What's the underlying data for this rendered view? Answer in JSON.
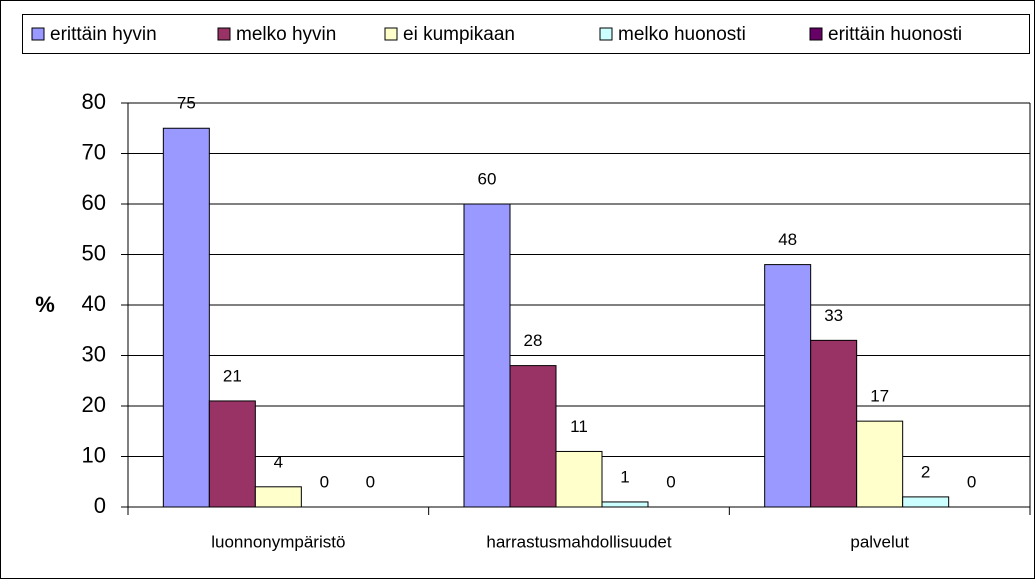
{
  "chart_data": {
    "type": "bar",
    "categories": [
      "luonnonympäristö",
      "harrastusmahdollisuudet",
      "palvelut"
    ],
    "series": [
      {
        "name": "erittäin hyvin",
        "color": "#9999ff",
        "values": [
          75,
          60,
          48
        ]
      },
      {
        "name": "melko hyvin",
        "color": "#993366",
        "values": [
          21,
          28,
          33
        ]
      },
      {
        "name": "ei kumpikaan",
        "color": "#ffffcc",
        "values": [
          4,
          11,
          17
        ]
      },
      {
        "name": "melko huonosti",
        "color": "#ccffff",
        "values": [
          0,
          1,
          2
        ]
      },
      {
        "name": "erittäin huonosti",
        "color": "#660066",
        "values": [
          0,
          0,
          0
        ]
      }
    ],
    "y_label": "%",
    "ylim": [
      0,
      80
    ],
    "yticks": [
      0,
      10,
      20,
      30,
      40,
      50,
      60,
      70,
      80
    ],
    "grid": true,
    "legend": "top",
    "data_labels": true
  }
}
